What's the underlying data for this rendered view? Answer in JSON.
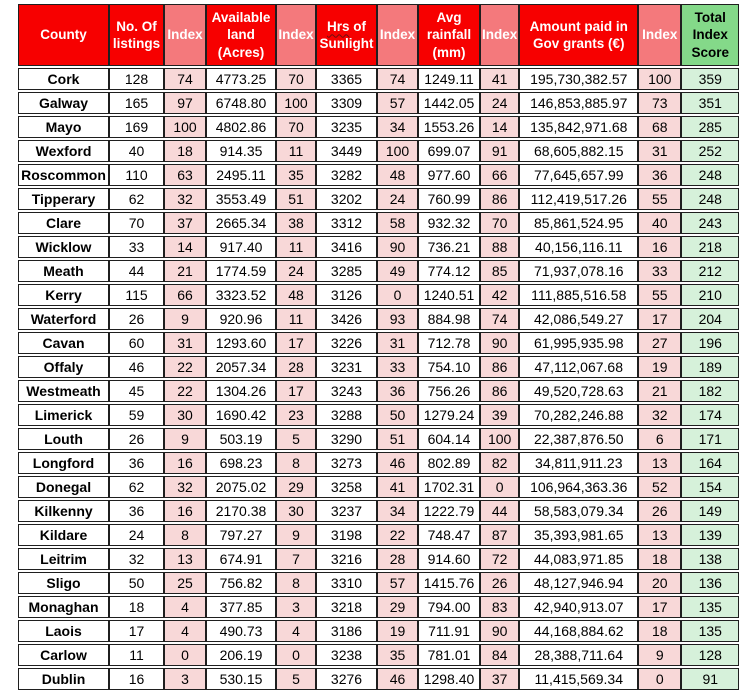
{
  "colors": {
    "header_red": "#F70000",
    "header_index_salmon": "#F4797C",
    "header_total_green": "#84D989",
    "cell_index_pink": "#F8D8D8",
    "cell_total_green": "#D6F1DA",
    "border": "#1F1F1F",
    "squiggle": "#6D0F0F"
  },
  "chart_data": {
    "type": "table",
    "columns": [
      {
        "label": "County",
        "kind": "main"
      },
      {
        "label": "No. Of listings",
        "kind": "main"
      },
      {
        "label": "Index",
        "kind": "index"
      },
      {
        "label": "Available land (Acres)",
        "kind": "main"
      },
      {
        "label": "Index",
        "kind": "index"
      },
      {
        "label": "Hrs of Sunlight",
        "kind": "main",
        "underline_word": "Hrs"
      },
      {
        "label": "Index",
        "kind": "index"
      },
      {
        "label": "Avg rainfall (mm)",
        "kind": "main"
      },
      {
        "label": "Index",
        "kind": "index"
      },
      {
        "label": "Amount paid in Gov grants (€)",
        "kind": "main"
      },
      {
        "label": "Index",
        "kind": "index"
      },
      {
        "label": "Total Index Score",
        "kind": "total"
      }
    ],
    "rows": [
      [
        "Cork",
        "128",
        "74",
        "4773.25",
        "70",
        "3365",
        "74",
        "1249.11",
        "41",
        "195,730,382.57",
        "100",
        "359"
      ],
      [
        "Galway",
        "165",
        "97",
        "6748.80",
        "100",
        "3309",
        "57",
        "1442.05",
        "24",
        "146,853,885.97",
        "73",
        "351"
      ],
      [
        "Mayo",
        "169",
        "100",
        "4802.86",
        "70",
        "3235",
        "34",
        "1553.26",
        "14",
        "135,842,971.68",
        "68",
        "285"
      ],
      [
        "Wexford",
        "40",
        "18",
        "914.35",
        "11",
        "3449",
        "100",
        "699.07",
        "91",
        "68,605,882.15",
        "31",
        "252"
      ],
      [
        "Roscommon",
        "110",
        "63",
        "2495.11",
        "35",
        "3282",
        "48",
        "977.60",
        "66",
        "77,645,657.99",
        "36",
        "248"
      ],
      [
        "Tipperary",
        "62",
        "32",
        "3553.49",
        "51",
        "3202",
        "24",
        "760.99",
        "86",
        "112,419,517.26",
        "55",
        "248"
      ],
      [
        "Clare",
        "70",
        "37",
        "2665.34",
        "38",
        "3312",
        "58",
        "932.32",
        "70",
        "85,861,524.95",
        "40",
        "243"
      ],
      [
        "Wicklow",
        "33",
        "14",
        "917.40",
        "11",
        "3416",
        "90",
        "736.21",
        "88",
        "40,156,116.11",
        "16",
        "218"
      ],
      [
        "Meath",
        "44",
        "21",
        "1774.59",
        "24",
        "3285",
        "49",
        "774.12",
        "85",
        "71,937,078.16",
        "33",
        "212"
      ],
      [
        "Kerry",
        "115",
        "66",
        "3323.52",
        "48",
        "3126",
        "0",
        "1240.51",
        "42",
        "111,885,516.58",
        "55",
        "210"
      ],
      [
        "Waterford",
        "26",
        "9",
        "920.96",
        "11",
        "3426",
        "93",
        "884.98",
        "74",
        "42,086,549.27",
        "17",
        "204"
      ],
      [
        "Cavan",
        "60",
        "31",
        "1293.60",
        "17",
        "3226",
        "31",
        "712.78",
        "90",
        "61,995,935.98",
        "27",
        "196"
      ],
      [
        "Offaly",
        "46",
        "22",
        "2057.34",
        "28",
        "3231",
        "33",
        "754.10",
        "86",
        "47,112,067.68",
        "19",
        "189"
      ],
      [
        "Westmeath",
        "45",
        "22",
        "1304.26",
        "17",
        "3243",
        "36",
        "756.26",
        "86",
        "49,520,728.63",
        "21",
        "182"
      ],
      [
        "Limerick",
        "59",
        "30",
        "1690.42",
        "23",
        "3288",
        "50",
        "1279.24",
        "39",
        "70,282,246.88",
        "32",
        "174"
      ],
      [
        "Louth",
        "26",
        "9",
        "503.19",
        "5",
        "3290",
        "51",
        "604.14",
        "100",
        "22,387,876.50",
        "6",
        "171"
      ],
      [
        "Longford",
        "36",
        "16",
        "698.23",
        "8",
        "3273",
        "46",
        "802.89",
        "82",
        "34,811,911.23",
        "13",
        "164"
      ],
      [
        "Donegal",
        "62",
        "32",
        "2075.02",
        "29",
        "3258",
        "41",
        "1702.31",
        "0",
        "106,964,363.36",
        "52",
        "154"
      ],
      [
        "Kilkenny",
        "36",
        "16",
        "2170.38",
        "30",
        "3237",
        "34",
        "1222.79",
        "44",
        "58,583,079.34",
        "26",
        "149"
      ],
      [
        "Kildare",
        "24",
        "8",
        "797.27",
        "9",
        "3198",
        "22",
        "748.47",
        "87",
        "35,393,981.65",
        "13",
        "139"
      ],
      [
        "Leitrim",
        "32",
        "13",
        "674.91",
        "7",
        "3216",
        "28",
        "914.60",
        "72",
        "44,083,971.85",
        "18",
        "138"
      ],
      [
        "Sligo",
        "50",
        "25",
        "756.82",
        "8",
        "3310",
        "57",
        "1415.76",
        "26",
        "48,127,946.94",
        "20",
        "136"
      ],
      [
        "Monaghan",
        "18",
        "4",
        "377.85",
        "3",
        "3218",
        "29",
        "794.00",
        "83",
        "42,940,913.07",
        "17",
        "135"
      ],
      [
        "Laois",
        "17",
        "4",
        "490.73",
        "4",
        "3186",
        "19",
        "711.91",
        "90",
        "44,168,884.62",
        "18",
        "135"
      ],
      [
        "Carlow",
        "11",
        "0",
        "206.19",
        "0",
        "3238",
        "35",
        "781.01",
        "84",
        "28,388,711.64",
        "9",
        "128"
      ],
      [
        "Dublin",
        "16",
        "3",
        "530.15",
        "5",
        "3276",
        "46",
        "1298.40",
        "37",
        "11,415,569.34",
        "0",
        "91"
      ]
    ]
  }
}
